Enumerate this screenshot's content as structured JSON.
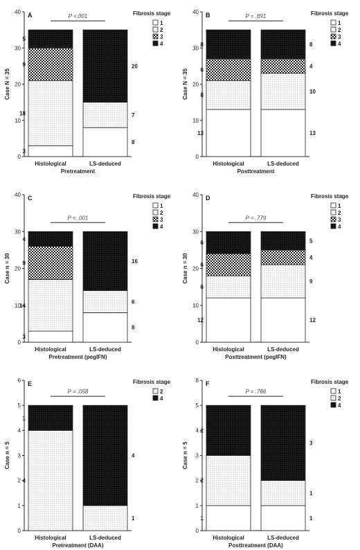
{
  "chart_data": [
    {
      "type": "bar",
      "panel_letter": "A",
      "p_value": "P <.001",
      "ylabel": "Case N = 35",
      "xlabel": "Pretreatment",
      "categories": [
        "Histological",
        "LS-deduced"
      ],
      "ylim": [
        0,
        40
      ],
      "yticks": [
        0,
        10,
        20,
        30,
        40
      ],
      "legend_title": "Fibrosis stage",
      "legend_stages": [
        "1",
        "2",
        "3",
        "4"
      ],
      "stacks": [
        {
          "stage1": 3,
          "stage2": 18,
          "stage3": 9,
          "stage4": 5
        },
        {
          "stage1": 8,
          "stage2": 7,
          "stage3": 0,
          "stage4": 20
        }
      ],
      "label_text": [
        {
          "stage1": "3",
          "stage2": "18",
          "stage3": "9",
          "stage4": "5"
        },
        {
          "stage1": "8",
          "stage2": "7",
          "stage3": "",
          "stage4": "20"
        }
      ]
    },
    {
      "type": "bar",
      "panel_letter": "B",
      "p_value": "P = .691",
      "ylabel": "Case N = 35",
      "xlabel": "Posttreatment",
      "categories": [
        "Histological",
        "LS-deduced"
      ],
      "ylim": [
        0,
        40
      ],
      "yticks": [
        0,
        10,
        20,
        30,
        40
      ],
      "legend_title": "Fibrosis stage",
      "legend_stages": [
        "1",
        "2",
        "3",
        "4"
      ],
      "stacks": [
        {
          "stage1": 13,
          "stage2": 8,
          "stage3": 6,
          "stage4": 8
        },
        {
          "stage1": 13,
          "stage2": 10,
          "stage3": 4,
          "stage4": 8
        }
      ],
      "label_text": [
        {
          "stage1": "13",
          "stage2": "8",
          "stage3": "6",
          "stage4": "8"
        },
        {
          "stage1": "13",
          "stage2": "10",
          "stage3": "4",
          "stage4": "8"
        }
      ]
    },
    {
      "type": "bar",
      "panel_letter": "C",
      "p_value": "P < .001",
      "ylabel": "Case n = 30",
      "xlabel": "Pretreatment (pegIFN)",
      "categories": [
        "Histological",
        "LS-deduced"
      ],
      "ylim": [
        0,
        40
      ],
      "yticks": [
        0,
        10,
        20,
        30,
        40
      ],
      "legend_title": "Fibrosis stage",
      "legend_stages": [
        "1",
        "2",
        "3",
        "4"
      ],
      "stacks": [
        {
          "stage1": 3,
          "stage2": 14,
          "stage3": 9,
          "stage4": 4
        },
        {
          "stage1": 8,
          "stage2": 6,
          "stage3": 0,
          "stage4": 16
        }
      ],
      "label_text": [
        {
          "stage1": "3",
          "stage2": "14",
          "stage3": "9",
          "stage4": "4"
        },
        {
          "stage1": "8",
          "stage2": "6",
          "stage3": "",
          "stage4": "16"
        }
      ]
    },
    {
      "type": "bar",
      "panel_letter": "D",
      "p_value": "P = .779",
      "ylabel": "Case n = 30",
      "xlabel": "Posttreatment (pegIFN)",
      "categories": [
        "Histological",
        "LS-deduced"
      ],
      "ylim": [
        0,
        40
      ],
      "yticks": [
        0,
        10,
        20,
        30,
        40
      ],
      "legend_title": "Fibrosis stage",
      "legend_stages": [
        "1",
        "2",
        "3",
        "4"
      ],
      "stacks": [
        {
          "stage1": 12,
          "stage2": 6,
          "stage3": 6,
          "stage4": 6
        },
        {
          "stage1": 12,
          "stage2": 9,
          "stage3": 4,
          "stage4": 5
        }
      ],
      "label_text": [
        {
          "stage1": "12",
          "stage2": "6",
          "stage3": "6",
          "stage4": "6"
        },
        {
          "stage1": "12",
          "stage2": "9",
          "stage3": "4",
          "stage4": "5"
        }
      ]
    },
    {
      "type": "bar",
      "panel_letter": "E",
      "p_value": "P = .058",
      "ylabel": "Case n = 5",
      "xlabel": "Pretreatment (DAA)",
      "categories": [
        "Histological",
        "LS-deduced"
      ],
      "ylim": [
        0,
        6
      ],
      "yticks": [
        0,
        1,
        2,
        3,
        4,
        5,
        6
      ],
      "legend_title": "Fibrosis stage",
      "legend_stages": [
        "2",
        "4"
      ],
      "stacks": [
        {
          "stage1": 0,
          "stage2": 4,
          "stage3": 0,
          "stage4": 1
        },
        {
          "stage1": 0,
          "stage2": 1,
          "stage3": 0,
          "stage4": 4
        }
      ],
      "label_text": [
        {
          "stage1": "",
          "stage2": "4",
          "stage3": "",
          "stage4": "1"
        },
        {
          "stage1": "",
          "stage2": "1",
          "stage3": "",
          "stage4": "4"
        }
      ]
    },
    {
      "type": "bar",
      "panel_letter": "F",
      "p_value": "P = .766",
      "ylabel": "Case n = 5",
      "xlabel": "Posttreatment (DAA)",
      "categories": [
        "Histological",
        "LS-deduced"
      ],
      "ylim": [
        0,
        6
      ],
      "yticks": [
        0,
        1,
        2,
        3,
        4,
        5,
        6
      ],
      "legend_title": "Fibrosis stage",
      "legend_stages": [
        "1",
        "2",
        "4"
      ],
      "stacks": [
        {
          "stage1": 1,
          "stage2": 2,
          "stage3": 0,
          "stage4": 2
        },
        {
          "stage1": 1,
          "stage2": 1,
          "stage3": 0,
          "stage4": 3
        }
      ],
      "label_text": [
        {
          "stage1": "1",
          "stage2": "2",
          "stage3": "",
          "stage4": "2"
        },
        {
          "stage1": "1",
          "stage2": "1",
          "stage3": "",
          "stage4": "3"
        }
      ]
    }
  ]
}
